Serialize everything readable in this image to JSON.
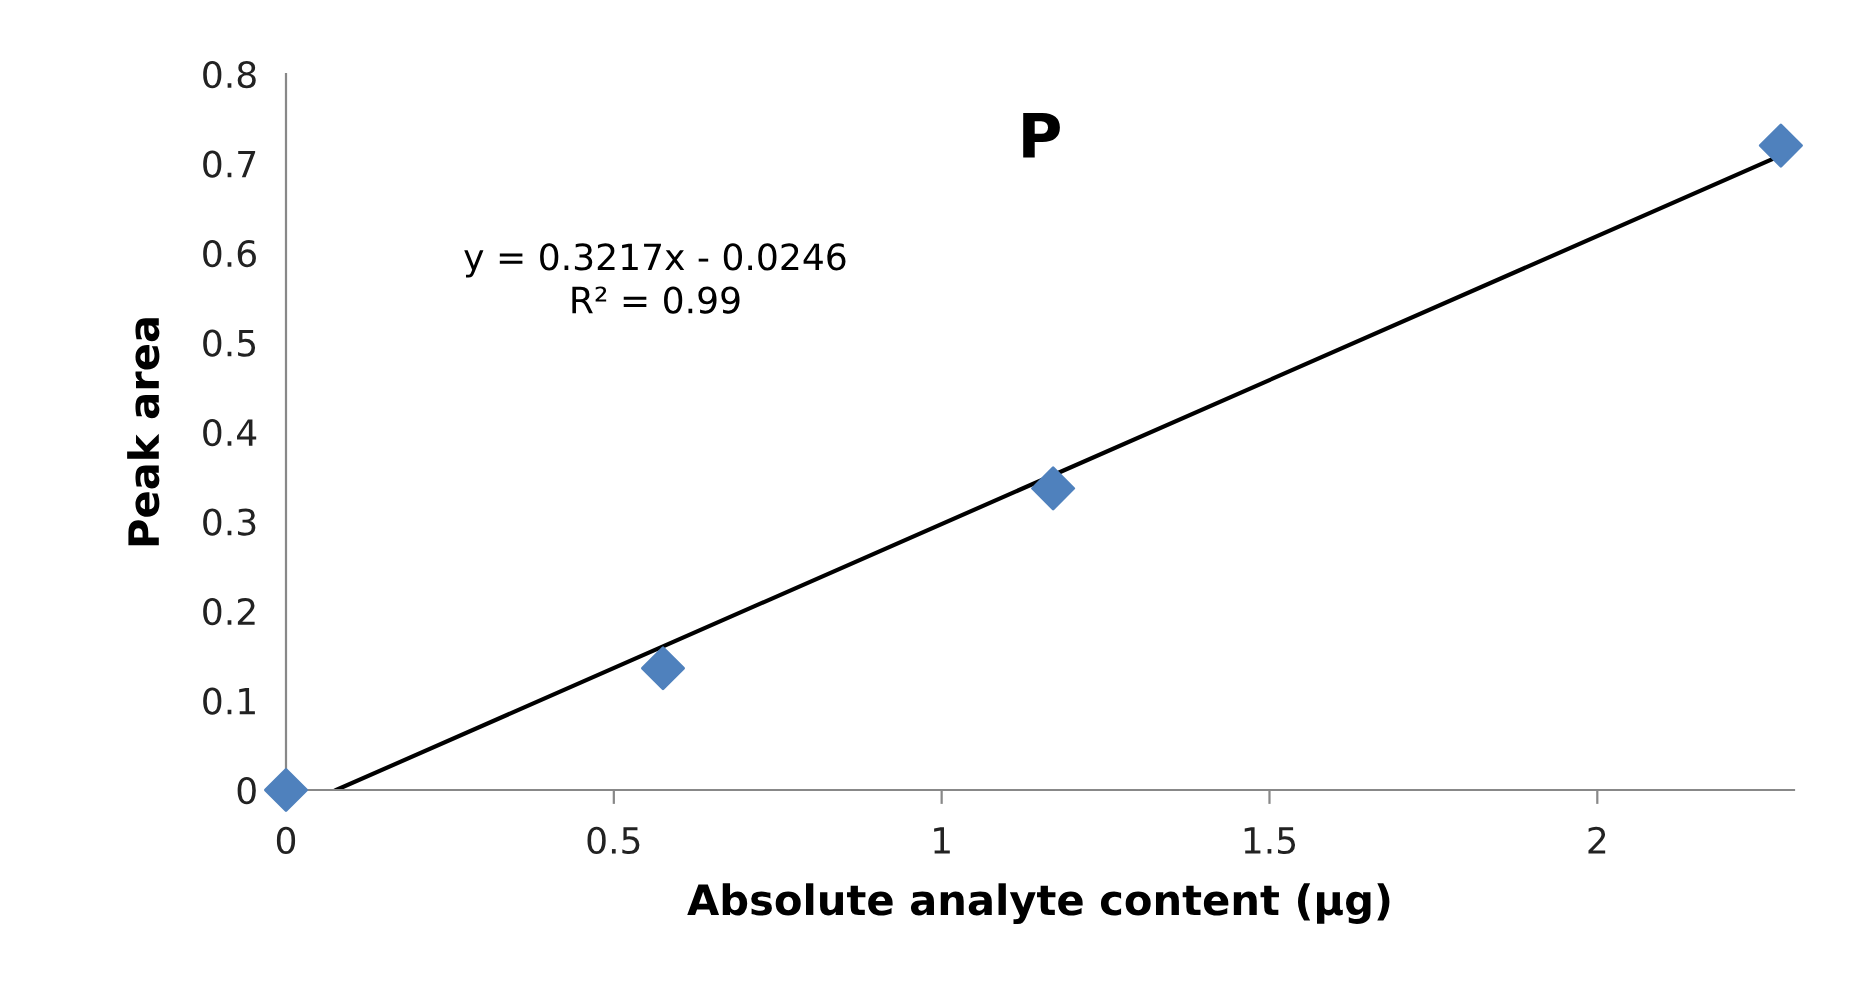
{
  "chart_data": {
    "type": "scatter",
    "title": "P",
    "xlabel": "Absolute analyte content (µg)",
    "ylabel": "Peak area",
    "xlim": [
      0,
      2.3
    ],
    "xticks": [
      0,
      0.5,
      1,
      1.5,
      2
    ],
    "ylim": [
      0,
      0.8
    ],
    "yticks": [
      0,
      0.1,
      0.2,
      0.3,
      0.4,
      0.5,
      0.6,
      0.7,
      0.8
    ],
    "grid": false,
    "marker": "diamond",
    "series": [
      {
        "color": "#4f81bd",
        "x": [
          0,
          0.575,
          1.17,
          2.28
        ],
        "values": [
          0,
          0.136,
          0.337,
          0.72
        ]
      },
      {
        "type": "line",
        "color": "#000000",
        "marker": "none",
        "line_style": "solid",
        "x": [
          0.0765,
          2.28
        ],
        "values": [
          0,
          0.709
        ]
      }
    ],
    "annotations": [
      "y = 0.3217x - 0.0246\nR² = 0.99"
    ]
  }
}
